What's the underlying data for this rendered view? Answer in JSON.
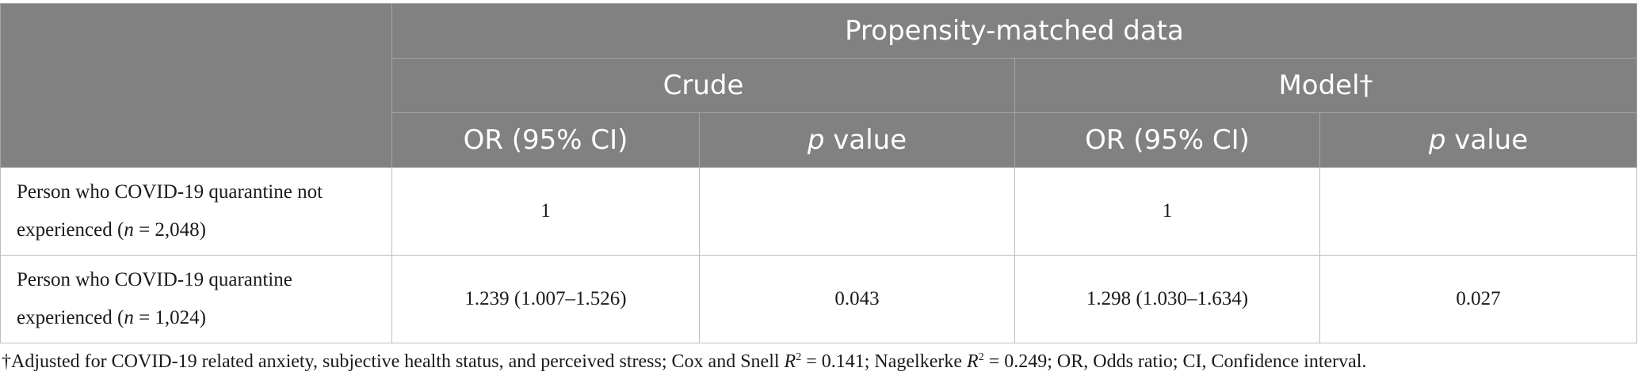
{
  "table": {
    "header": {
      "group": "Propensity-matched data",
      "crude": "Crude",
      "model": "Model†",
      "or_ci": "OR (95% CI)",
      "p_letter": "p",
      "p_value_word": "value"
    },
    "rows": [
      {
        "label_text": "Person who COVID-19 quarantine not experienced (",
        "n_letter": "n",
        "n_value": " = 2,048)",
        "crude_or": "1",
        "crude_p": "",
        "model_or": "1",
        "model_p": ""
      },
      {
        "label_text": "Person who COVID-19 quarantine experienced (",
        "n_letter": "n",
        "n_value": " = 1,024)",
        "crude_or": "1.239 (1.007–1.526)",
        "crude_p": "0.043",
        "model_or": "1.298 (1.030–1.634)",
        "model_p": "0.027"
      }
    ]
  },
  "footnote": {
    "part1": "†Adjusted for COVID-19 related anxiety, subjective health status, and perceived stress; Cox and Snell ",
    "r1": "R",
    "sup1": "2",
    "part2": " = 0.141; Nagelkerke ",
    "r2": "R",
    "sup2": "2",
    "part3": " = 0.249; OR, Odds ratio; CI, Confidence interval."
  }
}
